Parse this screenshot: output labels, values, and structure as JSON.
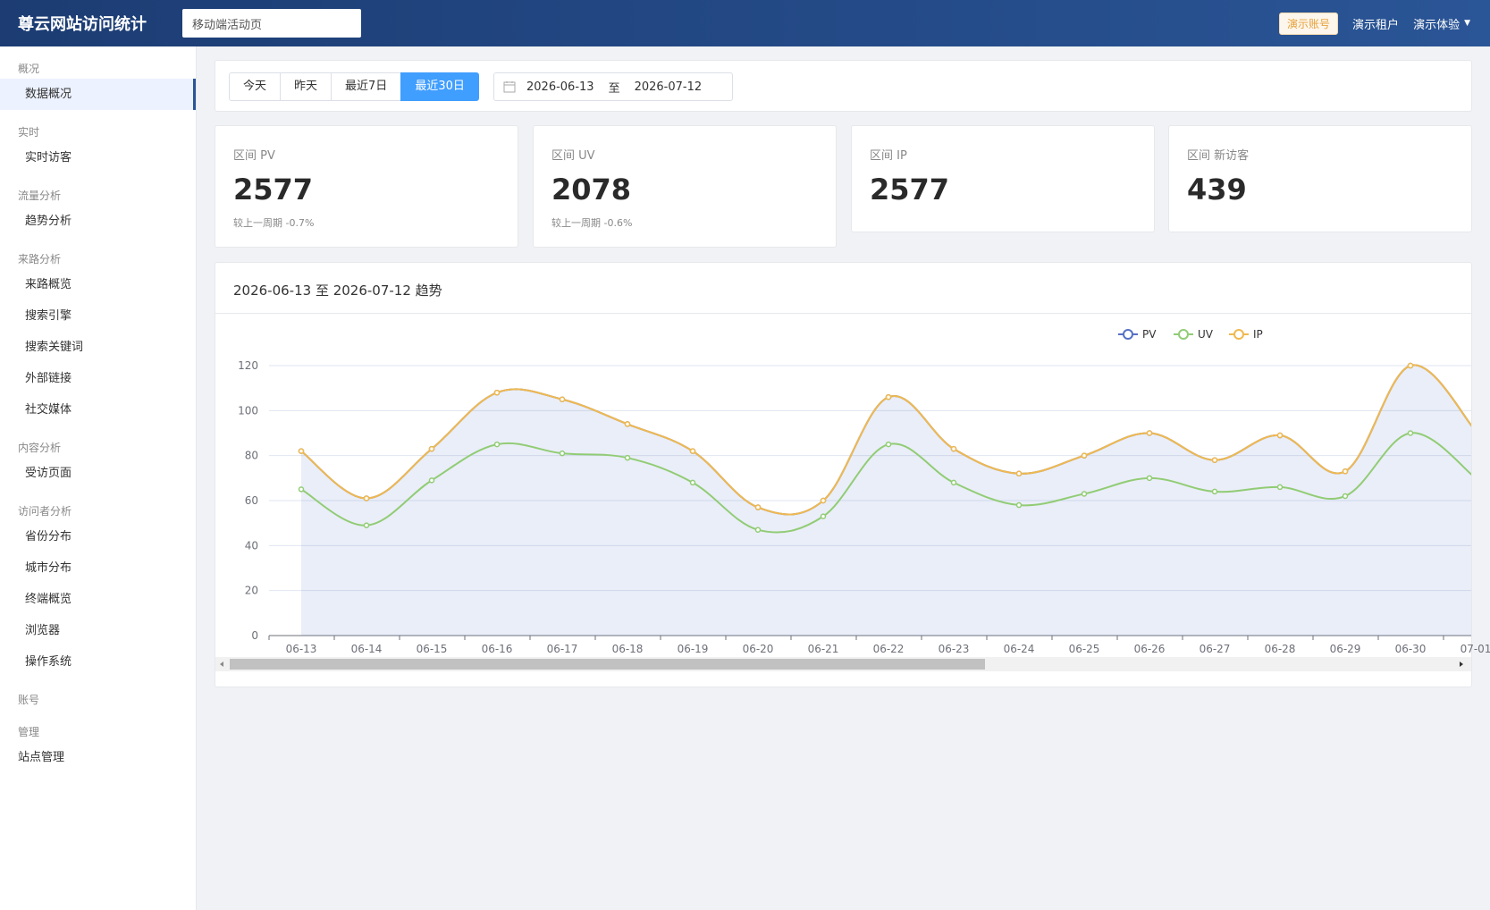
{
  "header": {
    "logo": "尊云网站访问统计",
    "site_select": "移动端活动页",
    "demo_badge": "演示账号",
    "tenant_link": "演示租户",
    "user_menu": "演示体验"
  },
  "sidebar": {
    "groups": [
      {
        "title": "概况",
        "items": [
          "数据概况"
        ]
      },
      {
        "title": "实时",
        "items": [
          "实时访客"
        ]
      },
      {
        "title": "流量分析",
        "items": [
          "趋势分析"
        ]
      },
      {
        "title": "来路分析",
        "items": [
          "来路概览",
          "搜索引擎",
          "搜索关键词",
          "外部链接",
          "社交媒体"
        ]
      },
      {
        "title": "内容分析",
        "items": [
          "受访页面"
        ]
      },
      {
        "title": "访问者分析",
        "items": [
          "省份分布",
          "城市分布",
          "终端概览",
          "浏览器",
          "操作系统"
        ]
      },
      {
        "title": "账号",
        "items": []
      },
      {
        "title": "管理",
        "items": [
          "站点管理"
        ]
      }
    ],
    "active_item": "数据概况"
  },
  "toolbar": {
    "ranges": [
      "今天",
      "昨天",
      "最近7日",
      "最近30日"
    ],
    "active_range": "最近30日",
    "date_start": "2026-06-13",
    "date_sep": "至",
    "date_end": "2026-07-12"
  },
  "stats": [
    {
      "label": "区间 PV",
      "value": "2577",
      "compare": "较上一周期 -0.7%"
    },
    {
      "label": "区间 UV",
      "value": "2078",
      "compare": "较上一周期 -0.6%"
    },
    {
      "label": "区间 IP",
      "value": "2577",
      "compare": ""
    },
    {
      "label": "区间 新访客",
      "value": "439",
      "compare": ""
    }
  ],
  "chart": {
    "title": "2026-06-13 至 2026-07-12 趋势"
  },
  "chart_data": {
    "type": "line",
    "x": [
      "06-13",
      "06-14",
      "06-15",
      "06-16",
      "06-17",
      "06-18",
      "06-19",
      "06-20",
      "06-21",
      "06-22",
      "06-23",
      "06-24",
      "06-25",
      "06-26",
      "06-27",
      "06-28",
      "06-29",
      "06-30",
      "07-01"
    ],
    "ylim": [
      0,
      120
    ],
    "yticks": [
      0,
      20,
      40,
      60,
      80,
      100,
      120
    ],
    "legend_position": "top-right",
    "grid": true,
    "series": [
      {
        "name": "PV",
        "color": "#5470c6",
        "values": [
          82,
          61,
          83,
          108,
          105,
          94,
          82,
          57,
          60,
          106,
          83,
          72,
          80,
          90,
          78,
          89,
          73,
          120,
          91
        ]
      },
      {
        "name": "UV",
        "color": "#91cc75",
        "values": [
          65,
          49,
          69,
          85,
          81,
          79,
          68,
          47,
          53,
          85,
          68,
          58,
          63,
          70,
          64,
          66,
          62,
          90,
          70
        ]
      },
      {
        "name": "IP",
        "color": "#f0b94f",
        "values": [
          82,
          61,
          83,
          108,
          105,
          94,
          82,
          57,
          60,
          106,
          83,
          72,
          80,
          90,
          78,
          89,
          73,
          120,
          91
        ]
      }
    ]
  }
}
